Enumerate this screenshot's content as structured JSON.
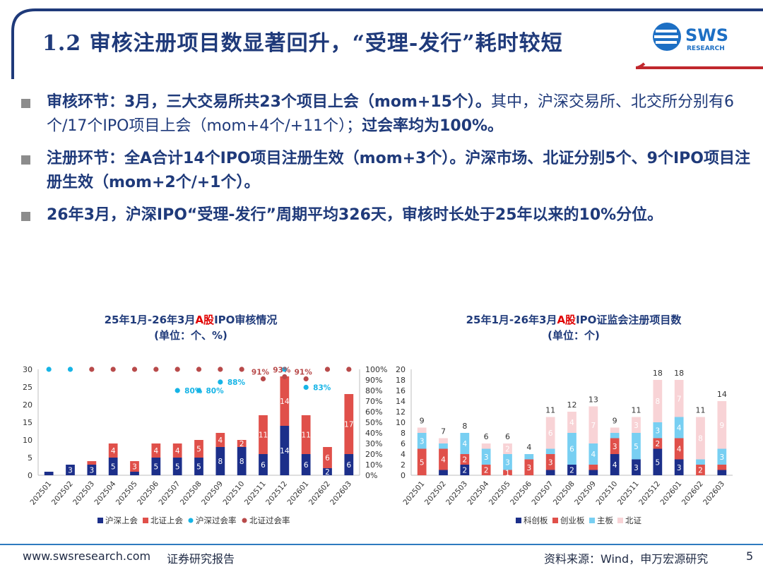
{
  "header": {
    "title": "1.2 审核注册项目数显著回升，“受理-发行”耗时较短",
    "logo_text": "SWS",
    "logo_subtext": "RESEARCH"
  },
  "bullets": [
    {
      "parts": [
        {
          "text": "审核环节：3月，三大交易所共23个项目上会（mom+15个）。",
          "bold": true
        },
        {
          "text": "其中，沪深交易所、北交所分别有6个/17个IPO项目上会（mom+4个/+11个）；",
          "bold": false
        },
        {
          "text": "过会率均为100%。",
          "bold": true
        }
      ]
    },
    {
      "parts": [
        {
          "text": "注册环节：全A合计14个IPO项目注册生效（mom+3个）。沪深市场、北证分别5个、9个IPO项目注册生效（mom+2个/+1个）。",
          "bold": true
        }
      ]
    },
    {
      "parts": [
        {
          "text": "26年3月，沪深IPO“受理-发行”周期平均326天，审核时长处于25年以来的10%分位。",
          "bold": true
        }
      ]
    }
  ],
  "chart_left_title": {
    "line1_pre": "25年1月-26年3月",
    "line1_red": "A股",
    "line1_post": "IPO审核情况",
    "line2": "(单位：个、%)"
  },
  "chart_right_title": {
    "line1_pre": "25年1月-26年3月",
    "line1_red": "A股",
    "line1_post": "IPO证监会注册项目数",
    "line2": "(单位：个)"
  },
  "chart_data": [
    {
      "type": "bar",
      "stacked": true,
      "categories": [
        "202501",
        "202502",
        "202503",
        "202504",
        "202505",
        "202506",
        "202507",
        "202508",
        "202509",
        "202510",
        "202511",
        "202512",
        "202601",
        "202602",
        "202603"
      ],
      "series": [
        {
          "name": "沪深上会",
          "color": "#1c2f8a",
          "values": [
            1,
            3,
            3,
            5,
            1,
            5,
            5,
            5,
            8,
            8,
            6,
            14,
            6,
            2,
            6
          ],
          "labels": [
            "",
            "3",
            "3",
            "5",
            "",
            "5",
            "5",
            "5",
            "8",
            "8",
            "6",
            "14",
            "6",
            "2",
            "6"
          ]
        },
        {
          "name": "北证上会",
          "color": "#e0504a",
          "values": [
            0,
            0,
            1,
            4,
            3,
            4,
            4,
            5,
            4,
            2,
            11,
            14,
            11,
            6,
            17
          ],
          "labels": [
            "",
            "",
            "",
            "4",
            "3",
            "4",
            "4",
            "5",
            "4",
            "2",
            "11",
            "14",
            "11",
            "6",
            "17"
          ]
        },
        {
          "name": "沪深过会率",
          "type": "scatter",
          "axis": "right",
          "color": "#16b4e6",
          "values": [
            100,
            100,
            null,
            null,
            null,
            null,
            80,
            80,
            88,
            null,
            null,
            100,
            83,
            null,
            null
          ],
          "labels": [
            "",
            "",
            "",
            "",
            "",
            "",
            "80%",
            "80%",
            "88%",
            "",
            "",
            "",
            "83%",
            "",
            ""
          ]
        },
        {
          "name": "北证过会率",
          "type": "scatter",
          "axis": "right",
          "color": "#b84a4a",
          "values": [
            null,
            null,
            100,
            100,
            100,
            100,
            100,
            100,
            100,
            100,
            91,
            93,
            91,
            100,
            100
          ],
          "labels": [
            "",
            "",
            "",
            "",
            "",
            "",
            "",
            "",
            "",
            "",
            "91%",
            "93%",
            "91%",
            "",
            ""
          ]
        }
      ],
      "ylim": [
        0,
        30
      ],
      "yticks": [
        0,
        5,
        10,
        15,
        20,
        25,
        30
      ],
      "y2lim": [
        0,
        100
      ],
      "y2ticks": [
        "0%",
        "10%",
        "20%",
        "30%",
        "40%",
        "50%",
        "60%",
        "70%",
        "80%",
        "90%",
        "100%"
      ],
      "legend_position": "bottom"
    },
    {
      "type": "bar",
      "stacked": true,
      "categories": [
        "202501",
        "202502",
        "202503",
        "202504",
        "202505",
        "202506",
        "202507",
        "202508",
        "202509",
        "202510",
        "202511",
        "202512",
        "202601",
        "202602",
        "202603"
      ],
      "series": [
        {
          "name": "科创板",
          "color": "#1c2f8a",
          "values": [
            0,
            1,
            2,
            0,
            0,
            0,
            1,
            2,
            1,
            4,
            3,
            5,
            3,
            0,
            1
          ],
          "labels": [
            "",
            "",
            "2",
            "",
            "",
            "",
            "",
            "2",
            "",
            "4",
            "3",
            "5",
            "3",
            "",
            ""
          ]
        },
        {
          "name": "创业板",
          "color": "#e0504a",
          "values": [
            5,
            4,
            2,
            2,
            1,
            3,
            3,
            0,
            1,
            3,
            0,
            2,
            4,
            2,
            1
          ],
          "labels": [
            "5",
            "4",
            "2",
            "2",
            "1",
            "3",
            "3",
            "",
            "",
            "3",
            "",
            "2",
            "4",
            "2",
            ""
          ]
        },
        {
          "name": "主板",
          "color": "#78cff2",
          "values": [
            3,
            1,
            4,
            3,
            3,
            1,
            1,
            6,
            4,
            1,
            5,
            3,
            4,
            1,
            3
          ],
          "labels": [
            "3",
            "",
            "4",
            "3",
            "3",
            "",
            "",
            "6",
            "4",
            "",
            "5",
            "3",
            "4",
            "",
            "3"
          ]
        },
        {
          "name": "北证",
          "color": "#f8d3d6",
          "values": [
            1,
            1,
            0,
            1,
            2,
            0,
            6,
            4,
            7,
            1,
            3,
            8,
            7,
            8,
            9
          ],
          "labels": [
            "",
            "",
            "",
            "",
            "2",
            "",
            "6",
            "4",
            "7",
            "",
            "3",
            "8",
            "7",
            "8",
            "9"
          ]
        }
      ],
      "totals": [
        9,
        7,
        8,
        6,
        6,
        4,
        11,
        12,
        13,
        9,
        11,
        18,
        18,
        11,
        14
      ],
      "ylim": [
        0,
        20
      ],
      "yticks": [
        0,
        2,
        4,
        6,
        8,
        10,
        12,
        14,
        16,
        18,
        20
      ],
      "legend_position": "bottom"
    }
  ],
  "footer": {
    "website": "www.swsresearch.com",
    "report_type": "证券研究报告",
    "source": "资料来源：Wind，申万宏源研究",
    "page": "5"
  },
  "colors": {
    "title": "#1f3a7a",
    "accent_red": "#c0272d",
    "footer_line": "#2e7bbf"
  }
}
